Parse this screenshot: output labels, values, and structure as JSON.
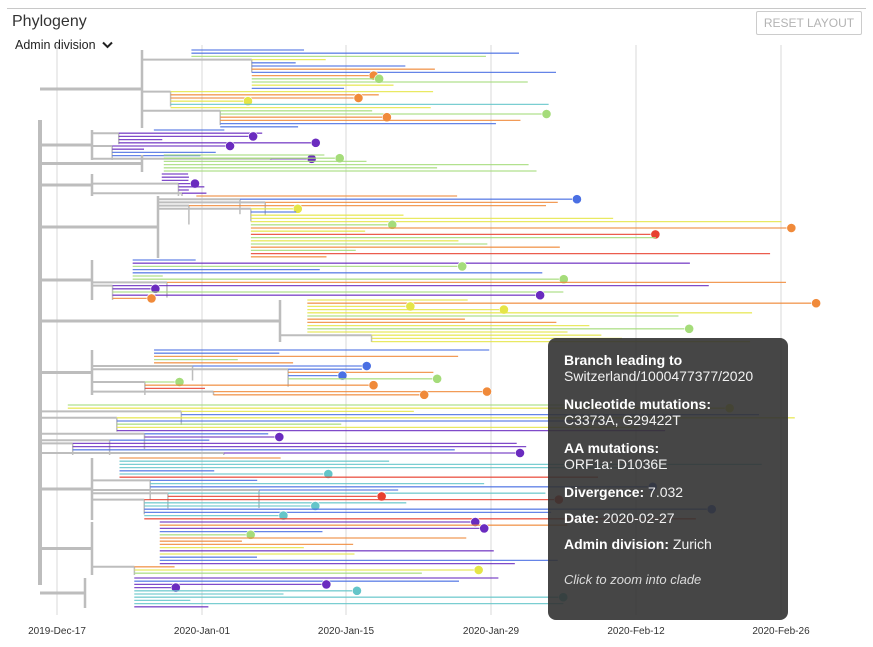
{
  "panel": {
    "title": "Phylogeny",
    "color_by": "Admin division",
    "reset_label": "RESET LAYOUT"
  },
  "axis": {
    "ticks": [
      "2019-Dec-17",
      "2020-Jan-01",
      "2020-Jan-15",
      "2020-Jan-29",
      "2020-Feb-12",
      "2020-Feb-26"
    ]
  },
  "tooltip": {
    "branch_label": "Branch leading to",
    "branch_value": "Switzerland/1000477377/2020",
    "nuc_label": "Nucleotide mutations:",
    "nuc_value": "C3373A, G29422T",
    "aa_label": "AA mutations:",
    "aa_value": "ORF1a:  D1036E",
    "divergence_label": "Divergence:",
    "divergence_value": "7.032",
    "date_label": "Date:",
    "date_value": "2020-02-27",
    "division_label": "Admin division:",
    "division_value": "Zurich",
    "hint": "Click to zoom into clade"
  },
  "colors": {
    "purple": "#6a2bbf",
    "blue": "#4a6fe3",
    "teal": "#63c5c9",
    "green": "#a5dc7a",
    "yellow": "#e5e547",
    "orange": "#f08a3a",
    "red": "#e8402f",
    "branch": "#bdbdbd"
  }
}
